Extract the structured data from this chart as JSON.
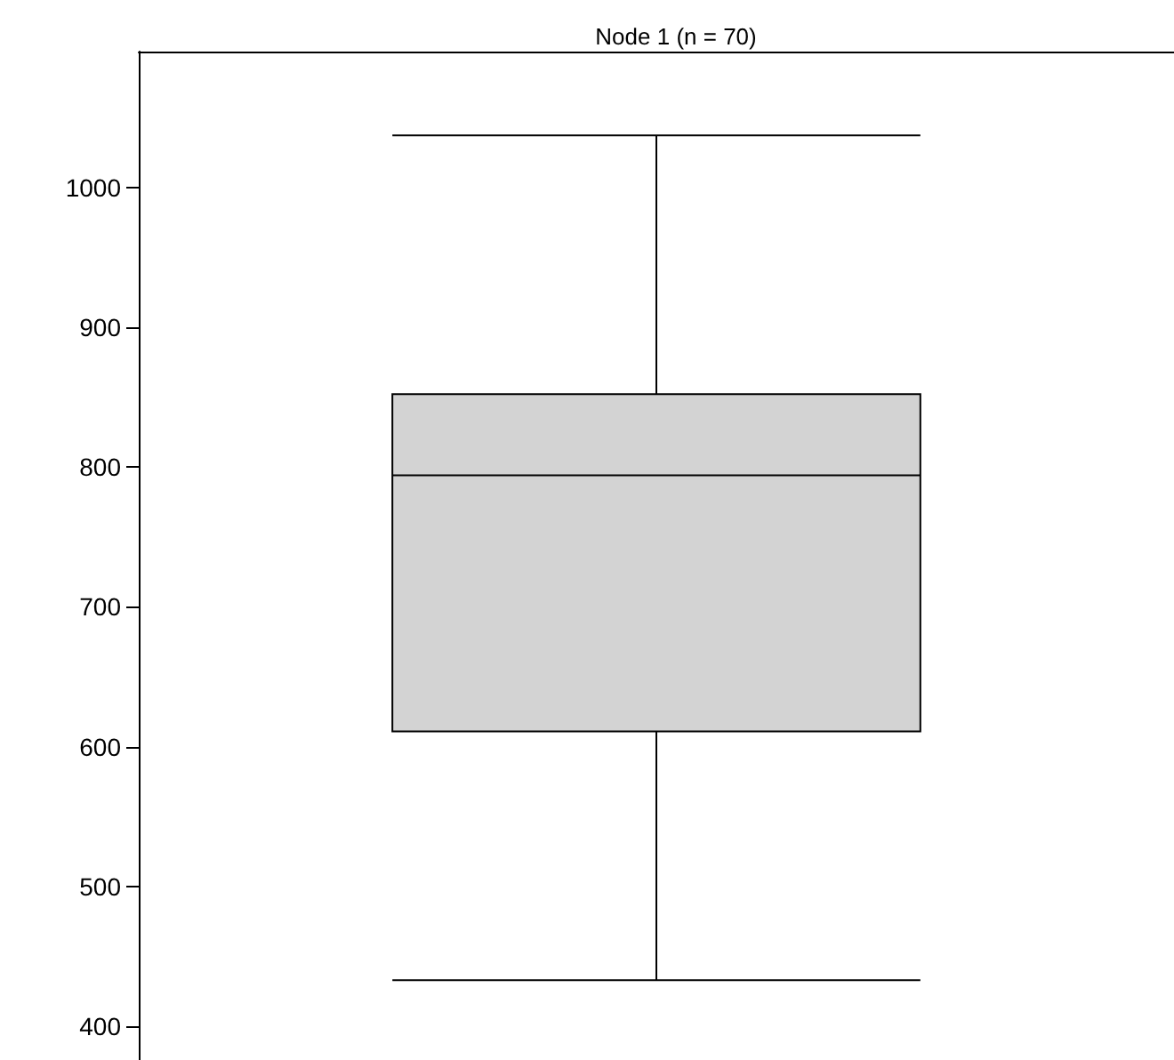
{
  "chart_data": {
    "type": "box",
    "title": "Node 1 (n = 70)",
    "categories": [
      null
    ],
    "boxes": [
      {
        "low": 433,
        "q1": 611,
        "median": 794,
        "q3": 852,
        "high": 1037
      }
    ],
    "color": "#d3d3d3",
    "ylim": [
      376,
      1097
    ],
    "yticks": [
      400,
      500,
      600,
      700,
      800,
      900,
      1000
    ],
    "grid": false,
    "tick_labels": "y"
  }
}
